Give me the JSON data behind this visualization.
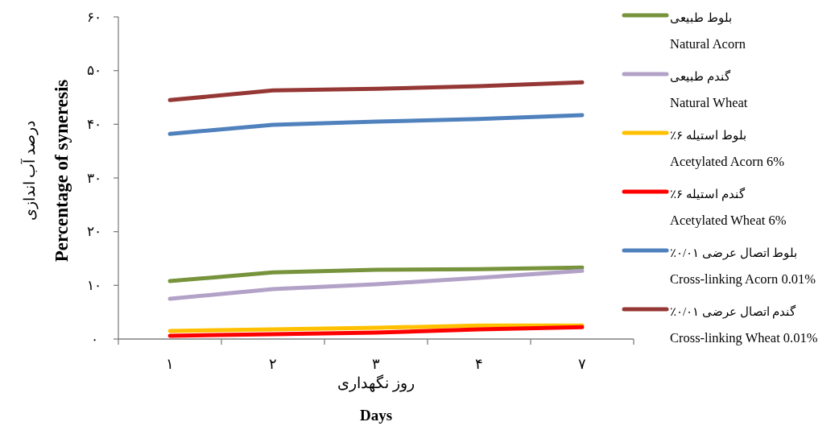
{
  "chart_data": {
    "type": "line",
    "categories": [
      "۱",
      "۲",
      "۳",
      "۴",
      "۷"
    ],
    "xlabel": "روز نگهداری\nDays",
    "ylabel": "درصد آب اندازی\nPercentage of syneresis",
    "ylim": [
      0,
      60
    ],
    "yticks": [
      {
        "value": 0,
        "label": "۰"
      },
      {
        "value": 10,
        "label": "۱۰"
      },
      {
        "value": 20,
        "label": "۲۰"
      },
      {
        "value": 30,
        "label": "۳۰"
      },
      {
        "value": 40,
        "label": "۴۰"
      },
      {
        "value": 50,
        "label": "۵۰"
      },
      {
        "value": 60,
        "label": "۶۰"
      }
    ],
    "grid": false,
    "legend": "right",
    "marker": "none",
    "line_style": "solid",
    "series": [
      {
        "name": "بلوط طبیعی\nNatural Acorn",
        "color": "#77933c",
        "values": [
          10.8,
          12.4,
          12.9,
          13.0,
          13.3
        ]
      },
      {
        "name": "گندم طبیعی\nNatural Wheat",
        "color": "#b3a2c7",
        "values": [
          7.5,
          9.3,
          10.2,
          11.4,
          12.7
        ]
      },
      {
        "name": "بلوط استیله ۶٪\nAcetylated Acorn 6%",
        "color": "#ffc000",
        "values": [
          1.5,
          1.8,
          2.1,
          2.5,
          2.5
        ]
      },
      {
        "name": "گندم استیله ۶٪\nAcetylated Wheat 6%",
        "color": "#ff0000",
        "values": [
          0.6,
          0.9,
          1.2,
          1.8,
          2.2
        ]
      },
      {
        "name": "بلوط  اتصال عرضی ۰/۰۱٪\nCross-linking Acorn 0.01%",
        "color": "#4f81bd",
        "values": [
          38.2,
          39.9,
          40.5,
          41.0,
          41.7
        ]
      },
      {
        "name": "گندم اتصال عرضی ۰/۰۱٪\nCross-linking Wheat 0.01%",
        "color": "#953735",
        "values": [
          44.5,
          46.3,
          46.6,
          47.1,
          47.8
        ]
      }
    ]
  }
}
